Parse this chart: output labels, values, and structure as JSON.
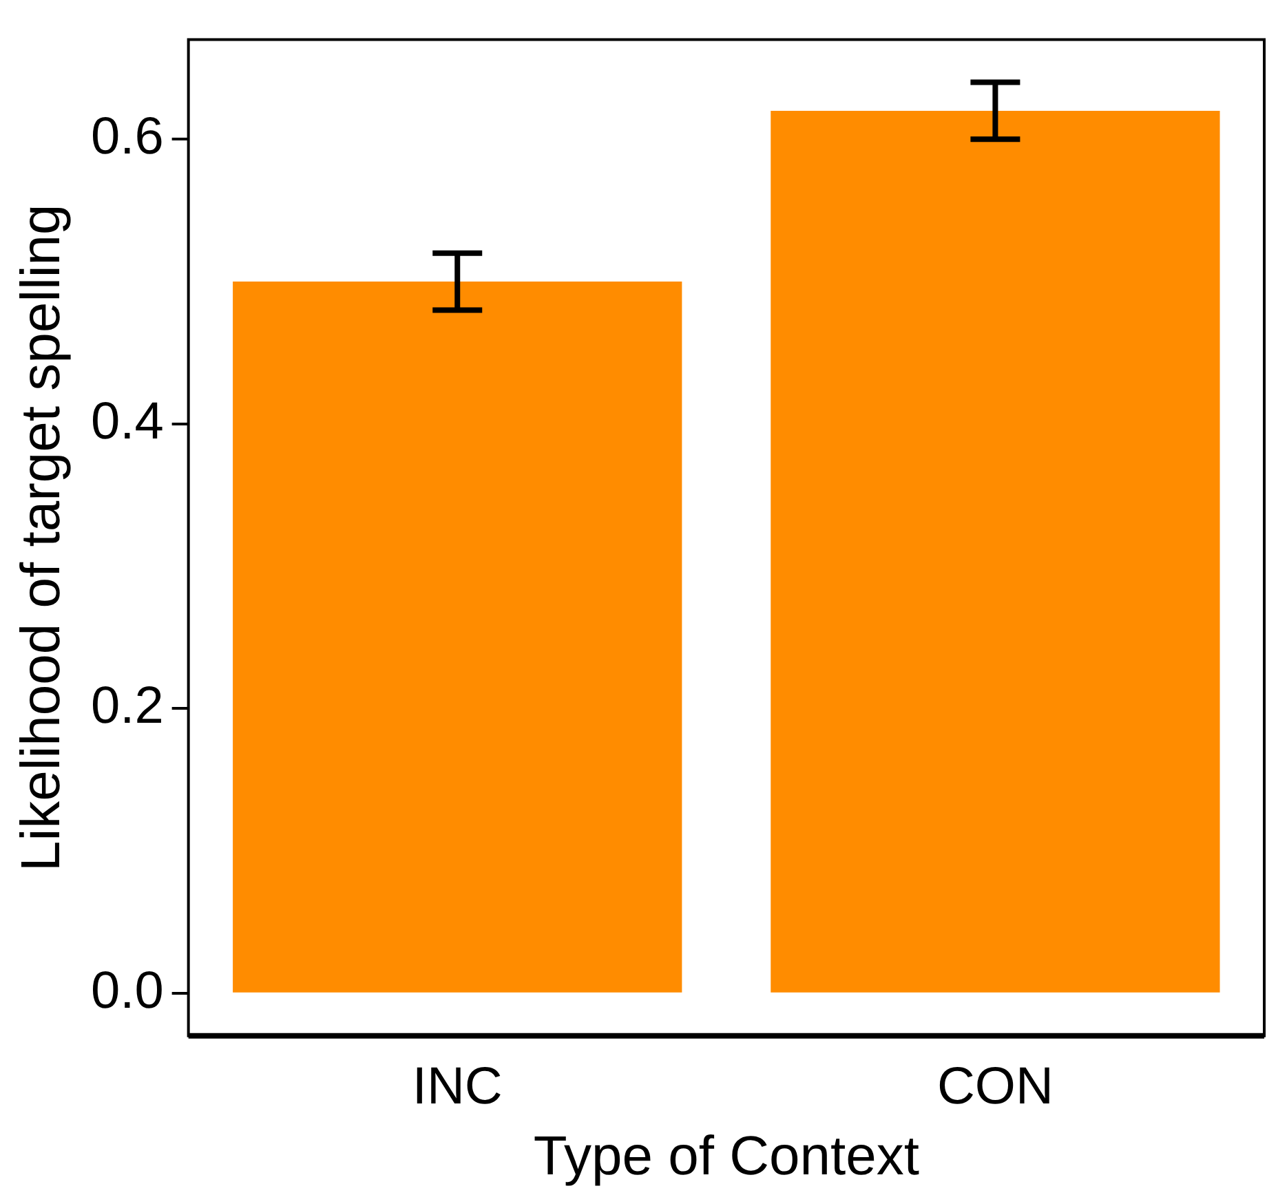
{
  "chart_data": {
    "type": "bar",
    "xlabel": "Type of Context",
    "ylabel": "Likelihood of target spelling",
    "categories": [
      "INC",
      "CON"
    ],
    "values": [
      0.5,
      0.62
    ],
    "errors": [
      0.02,
      0.02
    ],
    "color": "#ff8c00",
    "ylim": [
      -0.03,
      0.67
    ],
    "yticks": [
      {
        "value": 0,
        "label": "0.0"
      },
      {
        "value": 0.2,
        "label": "0.2"
      },
      {
        "value": 0.4,
        "label": "0.4"
      },
      {
        "value": 0.6,
        "label": "0.6"
      }
    ],
    "grid": false,
    "legend": false
  }
}
